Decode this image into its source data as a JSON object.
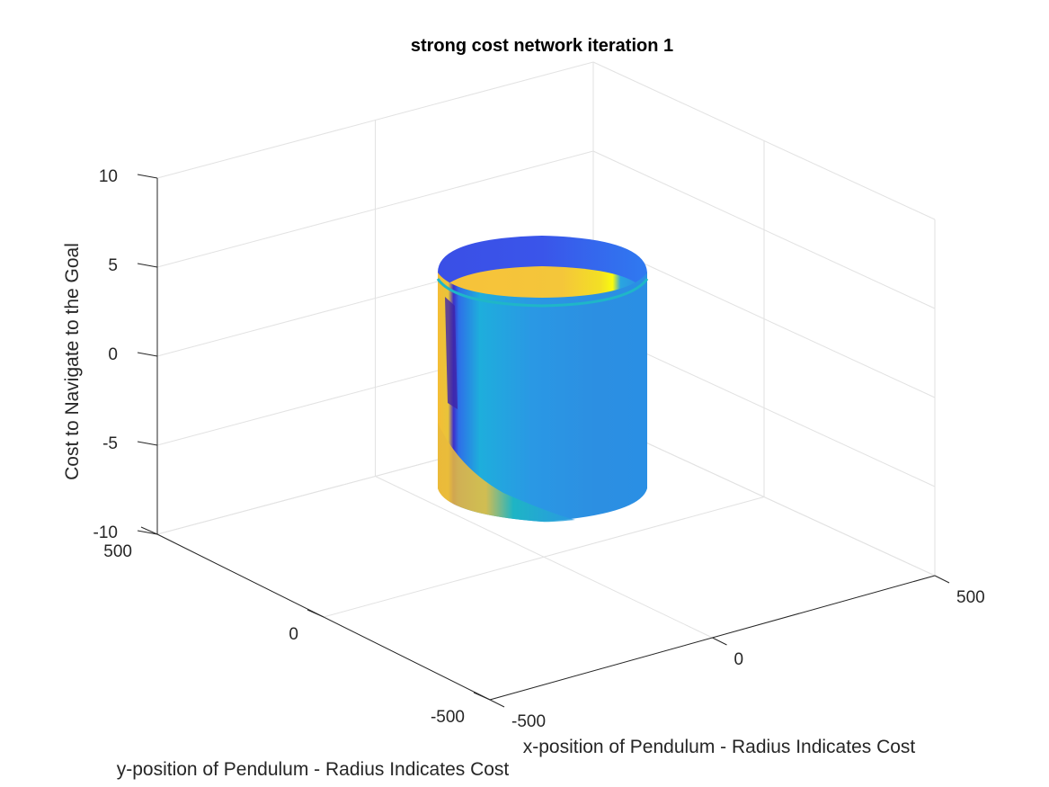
{
  "chart_data": {
    "type": "surface",
    "title": "strong cost network iteration 1",
    "xlabel": "x-position of Pendulum - Radius Indicates Cost",
    "ylabel": "y-position of Pendulum - Radius Indicates Cost",
    "zlabel": "Cost to Navigate to the Goal",
    "xlim": [
      -500,
      500
    ],
    "ylim": [
      -500,
      500
    ],
    "zlim": [
      -10,
      10
    ],
    "x_ticks": [
      "-500",
      "0",
      "500"
    ],
    "y_ticks": [
      "-500",
      "0",
      "500"
    ],
    "z_ticks": [
      "-10",
      "-5",
      "0",
      "5",
      "10"
    ],
    "grid": true,
    "colormap": "parula",
    "surface": {
      "shape": "cylinder",
      "z_range": [
        -8,
        5
      ],
      "colors": {
        "low": "#3e26a8",
        "mid": "#1e9ae0",
        "teal": "#1cb8c0",
        "high": "#f5c030",
        "max": "#f9fb0e"
      }
    }
  }
}
